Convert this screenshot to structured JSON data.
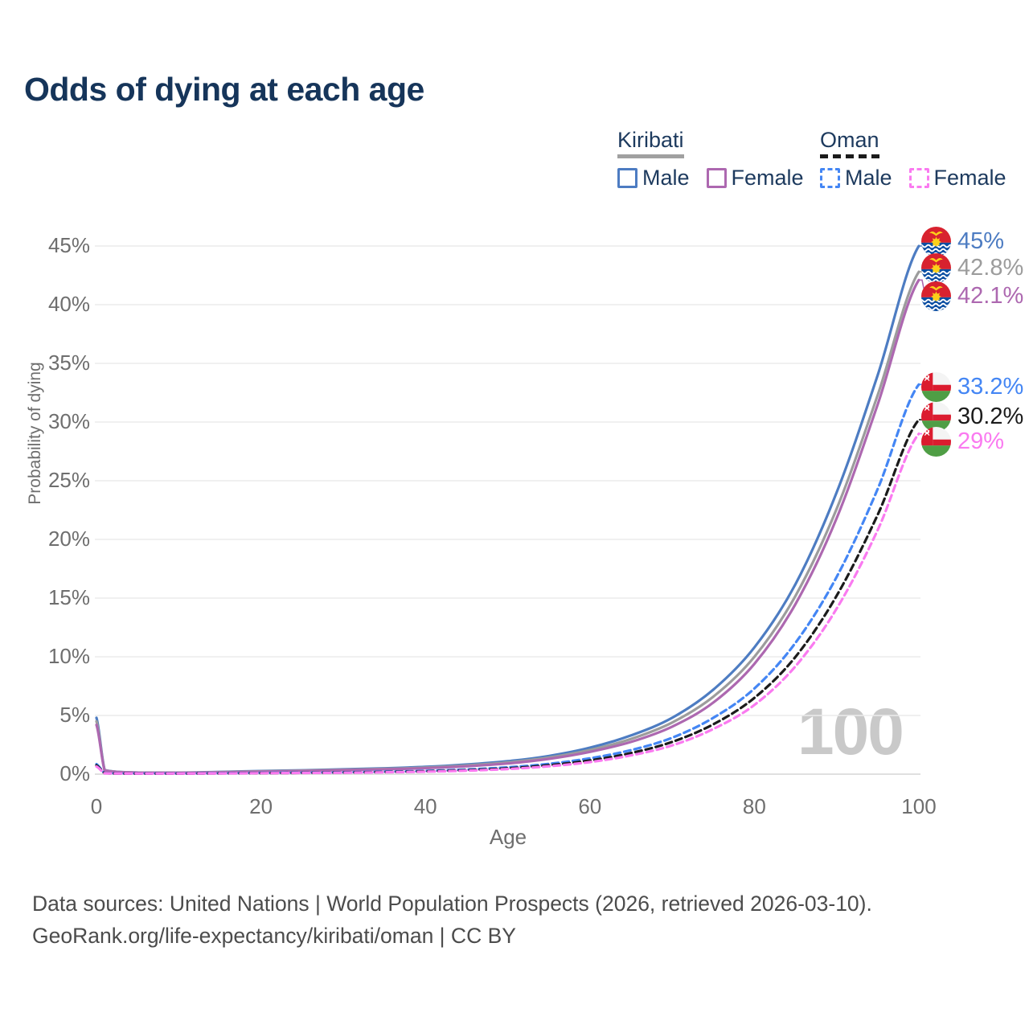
{
  "title": "Odds of dying at each age",
  "legend": {
    "groups": [
      {
        "name": "Kiribati",
        "line_style": "solid",
        "underline_color": "#a0a0a0",
        "items": [
          {
            "label": "Male",
            "color": "#4d7cc2",
            "dashed": false
          },
          {
            "label": "Female",
            "color": "#ad68b0",
            "dashed": false
          }
        ]
      },
      {
        "name": "Oman",
        "line_style": "dashed",
        "underline_color": "#1b1b1b",
        "items": [
          {
            "label": "Male",
            "color": "#4486f4",
            "dashed": true
          },
          {
            "label": "Female",
            "color": "#fa7af0",
            "dashed": true
          }
        ]
      }
    ]
  },
  "axes": {
    "y_title": "Probability of dying",
    "x_title": "Age",
    "y_ticks": [
      "0%",
      "5%",
      "10%",
      "15%",
      "20%",
      "25%",
      "30%",
      "35%",
      "40%",
      "45%"
    ],
    "x_ticks": [
      "0",
      "20",
      "40",
      "60",
      "80",
      "100"
    ],
    "y_range": [
      0,
      45
    ],
    "x_range": [
      0,
      100
    ],
    "grid": "horizontal"
  },
  "watermark": "100",
  "footer": {
    "line1": "Data sources: United Nations | World Population Prospects (2026, retrieved 2026-03-10).",
    "line2": "GeoRank.org/life-expectancy/kiribati/oman | CC BY"
  },
  "chart_data": {
    "type": "line",
    "title": "Odds of dying at each age",
    "xlabel": "Age",
    "ylabel": "Probability of dying",
    "xlim": [
      0,
      100
    ],
    "ylim": [
      0,
      45
    ],
    "legend_position": "top-right",
    "series": [
      {
        "name": "Kiribati Male",
        "country": "Kiribati",
        "sex": "male",
        "color": "#4d7cc2",
        "dash": "solid",
        "end_label": "45%",
        "flag": "kiribati",
        "points": [
          [
            0,
            4.8
          ],
          [
            1,
            0.35
          ],
          [
            5,
            0.14
          ],
          [
            10,
            0.13
          ],
          [
            15,
            0.19
          ],
          [
            20,
            0.27
          ],
          [
            25,
            0.33
          ],
          [
            30,
            0.41
          ],
          [
            35,
            0.5
          ],
          [
            40,
            0.62
          ],
          [
            45,
            0.82
          ],
          [
            50,
            1.1
          ],
          [
            55,
            1.55
          ],
          [
            60,
            2.25
          ],
          [
            65,
            3.3
          ],
          [
            70,
            4.8
          ],
          [
            75,
            7.2
          ],
          [
            80,
            10.8
          ],
          [
            85,
            16.2
          ],
          [
            90,
            24
          ],
          [
            95,
            34
          ],
          [
            100,
            45
          ]
        ]
      },
      {
        "name": "Kiribati (both sexes)",
        "country": "Kiribati",
        "sex": "both",
        "color": "#9c9c9c",
        "dash": "solid",
        "end_label": "42.8%",
        "flag": "kiribati",
        "points": [
          [
            0,
            4.5
          ],
          [
            1,
            0.33
          ],
          [
            5,
            0.13
          ],
          [
            10,
            0.12
          ],
          [
            15,
            0.17
          ],
          [
            20,
            0.24
          ],
          [
            25,
            0.3
          ],
          [
            30,
            0.37
          ],
          [
            35,
            0.45
          ],
          [
            40,
            0.56
          ],
          [
            45,
            0.74
          ],
          [
            50,
            1.0
          ],
          [
            55,
            1.42
          ],
          [
            60,
            2.06
          ],
          [
            65,
            3.0
          ],
          [
            70,
            4.4
          ],
          [
            75,
            6.6
          ],
          [
            80,
            10.0
          ],
          [
            85,
            15.2
          ],
          [
            90,
            22.6
          ],
          [
            95,
            32.3
          ],
          [
            100,
            42.8
          ]
        ]
      },
      {
        "name": "Kiribati Female",
        "country": "Kiribati",
        "sex": "female",
        "color": "#ad68b0",
        "dash": "solid",
        "end_label": "42.1%",
        "flag": "kiribati",
        "points": [
          [
            0,
            4.2
          ],
          [
            1,
            0.31
          ],
          [
            5,
            0.12
          ],
          [
            10,
            0.11
          ],
          [
            15,
            0.15
          ],
          [
            20,
            0.21
          ],
          [
            25,
            0.27
          ],
          [
            30,
            0.34
          ],
          [
            35,
            0.41
          ],
          [
            40,
            0.51
          ],
          [
            45,
            0.67
          ],
          [
            50,
            0.91
          ],
          [
            55,
            1.3
          ],
          [
            60,
            1.9
          ],
          [
            65,
            2.75
          ],
          [
            70,
            4.05
          ],
          [
            75,
            6.1
          ],
          [
            80,
            9.4
          ],
          [
            85,
            14.5
          ],
          [
            90,
            21.8
          ],
          [
            95,
            31.5
          ],
          [
            100,
            42.1
          ]
        ]
      },
      {
        "name": "Oman Male",
        "country": "Oman",
        "sex": "male",
        "color": "#4486f4",
        "dash": "dashed",
        "end_label": "33.2%",
        "flag": "oman",
        "points": [
          [
            0,
            0.85
          ],
          [
            1,
            0.09
          ],
          [
            5,
            0.06
          ],
          [
            10,
            0.06
          ],
          [
            15,
            0.08
          ],
          [
            20,
            0.11
          ],
          [
            25,
            0.13
          ],
          [
            30,
            0.16
          ],
          [
            35,
            0.21
          ],
          [
            40,
            0.28
          ],
          [
            45,
            0.4
          ],
          [
            50,
            0.58
          ],
          [
            55,
            0.88
          ],
          [
            60,
            1.35
          ],
          [
            65,
            2.05
          ],
          [
            70,
            3.1
          ],
          [
            75,
            4.8
          ],
          [
            80,
            7.3
          ],
          [
            85,
            11.2
          ],
          [
            90,
            16.8
          ],
          [
            95,
            24.3
          ],
          [
            100,
            33.2
          ]
        ]
      },
      {
        "name": "Oman (both sexes)",
        "country": "Oman",
        "sex": "both",
        "color": "#1b1b1b",
        "dash": "dashed",
        "end_label": "30.2%",
        "flag": "oman",
        "points": [
          [
            0,
            0.75
          ],
          [
            1,
            0.08
          ],
          [
            5,
            0.05
          ],
          [
            10,
            0.05
          ],
          [
            15,
            0.07
          ],
          [
            20,
            0.09
          ],
          [
            25,
            0.11
          ],
          [
            30,
            0.14
          ],
          [
            35,
            0.18
          ],
          [
            40,
            0.24
          ],
          [
            45,
            0.34
          ],
          [
            50,
            0.5
          ],
          [
            55,
            0.76
          ],
          [
            60,
            1.17
          ],
          [
            65,
            1.8
          ],
          [
            70,
            2.75
          ],
          [
            75,
            4.25
          ],
          [
            80,
            6.5
          ],
          [
            85,
            10.0
          ],
          [
            90,
            15.2
          ],
          [
            95,
            22.1
          ],
          [
            100,
            30.2
          ]
        ]
      },
      {
        "name": "Oman Female",
        "country": "Oman",
        "sex": "female",
        "color": "#fa7af0",
        "dash": "dashed",
        "end_label": "29%",
        "flag": "oman",
        "points": [
          [
            0,
            0.65
          ],
          [
            1,
            0.07
          ],
          [
            5,
            0.05
          ],
          [
            10,
            0.05
          ],
          [
            15,
            0.06
          ],
          [
            20,
            0.08
          ],
          [
            25,
            0.1
          ],
          [
            30,
            0.12
          ],
          [
            35,
            0.16
          ],
          [
            40,
            0.21
          ],
          [
            45,
            0.3
          ],
          [
            50,
            0.44
          ],
          [
            55,
            0.67
          ],
          [
            60,
            1.03
          ],
          [
            65,
            1.6
          ],
          [
            70,
            2.45
          ],
          [
            75,
            3.85
          ],
          [
            80,
            5.9
          ],
          [
            85,
            9.2
          ],
          [
            90,
            14.1
          ],
          [
            95,
            20.8
          ],
          [
            100,
            29
          ]
        ]
      }
    ]
  }
}
